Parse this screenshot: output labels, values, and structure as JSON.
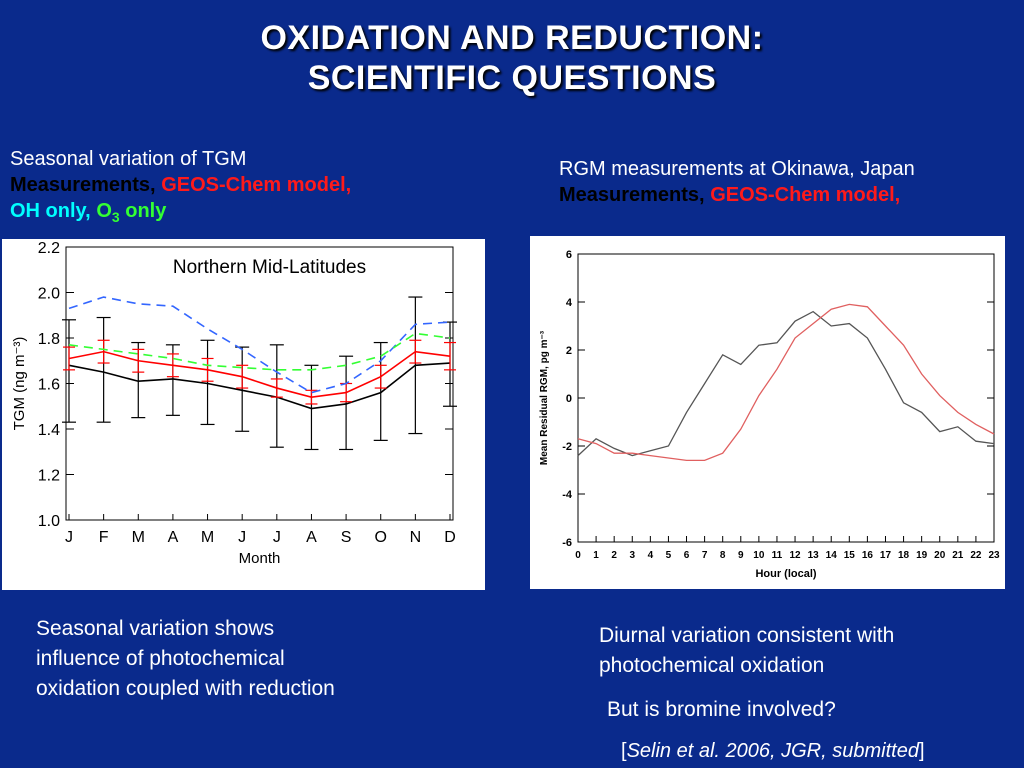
{
  "slide": {
    "title_line1": "OXIDATION AND REDUCTION:",
    "title_line2": "SCIENTIFIC QUESTIONS"
  },
  "left_caption": {
    "line1": "Seasonal variation of TGM",
    "measurements": "Measurements,",
    "model": "GEOS-Chem model,",
    "oh_only": "OH only,",
    "o3_prefix": "O",
    "o3_sub": "3",
    "o3_suffix": " only"
  },
  "right_caption": {
    "line1": "RGM measurements at Okinawa, Japan",
    "measurements": "Measurements,",
    "model": "GEOS-Chem model,"
  },
  "left_text": {
    "line1": "Seasonal variation shows",
    "line2": "influence of photochemical",
    "line3": "oxidation coupled with reduction"
  },
  "right_text": {
    "line1": "Diurnal variation consistent with",
    "line2": "photochemical oxidation",
    "question": "But is bromine involved?"
  },
  "citation": {
    "open": "[",
    "ref": "Selin et al. 2006, JGR, submitted",
    "close": "]"
  },
  "colors": {
    "background": "#0a2a8c",
    "measurements": "#000000",
    "model": "#ff1a1a",
    "oh_only": "#3366ff",
    "o3_only": "#33ff33"
  },
  "chart_data": [
    {
      "type": "line",
      "title": "Northern Mid-Latitudes",
      "xlabel": "Month",
      "ylabel": "TGM (ng m⁻³)",
      "categories": [
        "J",
        "F",
        "M",
        "A",
        "M",
        "J",
        "J",
        "A",
        "S",
        "O",
        "N",
        "D"
      ],
      "ylim": [
        1.0,
        2.2
      ],
      "yticks": [
        "1.0",
        "1.2",
        "1.4",
        "1.6",
        "1.8",
        "2.0",
        "2.2"
      ],
      "series": [
        {
          "key": "measurements",
          "color": "#000000",
          "values": [
            1.68,
            1.65,
            1.61,
            1.62,
            1.6,
            1.57,
            1.54,
            1.49,
            1.51,
            1.56,
            1.68,
            1.69
          ],
          "err_low": [
            1.43,
            1.43,
            1.45,
            1.46,
            1.42,
            1.39,
            1.32,
            1.31,
            1.31,
            1.35,
            1.38,
            1.5
          ],
          "err_high": [
            1.88,
            1.89,
            1.78,
            1.77,
            1.79,
            1.76,
            1.77,
            1.68,
            1.72,
            1.78,
            1.98,
            1.87
          ]
        },
        {
          "key": "model",
          "color": "#ff0000",
          "values": [
            1.71,
            1.74,
            1.7,
            1.68,
            1.66,
            1.63,
            1.58,
            1.54,
            1.56,
            1.63,
            1.74,
            1.72
          ],
          "err_low": [
            1.66,
            1.69,
            1.65,
            1.63,
            1.61,
            1.58,
            1.54,
            1.51,
            1.52,
            1.58,
            1.69,
            1.66
          ],
          "err_high": [
            1.76,
            1.79,
            1.75,
            1.73,
            1.71,
            1.68,
            1.62,
            1.57,
            1.6,
            1.68,
            1.79,
            1.78
          ]
        },
        {
          "key": "oh_only",
          "color": "#3366ff",
          "values": [
            1.93,
            1.98,
            1.95,
            1.94,
            1.84,
            1.75,
            1.65,
            1.56,
            1.6,
            1.7,
            1.86,
            1.87
          ]
        },
        {
          "key": "o3_only",
          "color": "#33ff33",
          "values": [
            1.77,
            1.75,
            1.73,
            1.71,
            1.68,
            1.67,
            1.66,
            1.66,
            1.68,
            1.72,
            1.82,
            1.8
          ]
        }
      ]
    },
    {
      "type": "line",
      "xlabel": "Hour (local)",
      "ylabel": "Mean Residual RGM, pg m⁻³",
      "x": [
        0,
        1,
        2,
        3,
        4,
        5,
        6,
        7,
        8,
        9,
        10,
        11,
        12,
        13,
        14,
        15,
        16,
        17,
        18,
        19,
        20,
        21,
        22,
        23
      ],
      "xticks": [
        "0",
        "1",
        "2",
        "3",
        "4",
        "5",
        "6",
        "7",
        "8",
        "9",
        "10",
        "11",
        "12",
        "13",
        "14",
        "15",
        "16",
        "17",
        "18",
        "19",
        "20",
        "21",
        "22",
        "23"
      ],
      "ylim": [
        -6,
        6
      ],
      "yticks": [
        "-6",
        "-4",
        "-2",
        "0",
        "2",
        "4",
        "6"
      ],
      "series": [
        {
          "key": "measurements",
          "color": "#555555",
          "values": [
            -2.4,
            -1.7,
            -2.1,
            -2.4,
            -2.2,
            -2.0,
            -0.6,
            0.6,
            1.8,
            1.4,
            2.2,
            2.3,
            3.2,
            3.6,
            3.0,
            3.1,
            2.5,
            1.2,
            -0.2,
            -0.6,
            -1.4,
            -1.2,
            -1.8,
            -1.9
          ]
        },
        {
          "key": "model",
          "color": "#e06060",
          "values": [
            -1.7,
            -1.9,
            -2.3,
            -2.3,
            -2.4,
            -2.5,
            -2.6,
            -2.6,
            -2.3,
            -1.3,
            0.1,
            1.2,
            2.5,
            3.1,
            3.7,
            3.9,
            3.8,
            3.0,
            2.2,
            1.0,
            0.1,
            -0.6,
            -1.1,
            -1.5
          ]
        }
      ]
    }
  ]
}
